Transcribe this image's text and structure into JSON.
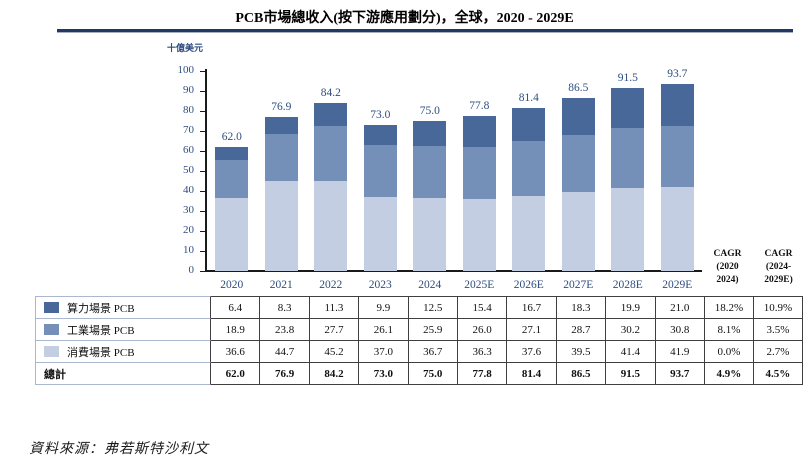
{
  "title": "PCB市場總收入(按下游應用劃分)，全球，2020 - 2029E",
  "unit_label": "十億美元",
  "source": "資料來源：弗若斯特沙利文",
  "colors": {
    "compute": "#49689a",
    "industrial": "#748fb8",
    "consumer": "#c3cee2",
    "axis_text": "#2e4d80",
    "title_rule": "#1f3864"
  },
  "chart_data": {
    "type": "bar",
    "stacked": true,
    "title": "PCB市場總收入(按下游應用劃分)，全球，2020 - 2029E",
    "ylabel": "十億美元",
    "ylim": [
      0,
      100
    ],
    "ytick_step": 10,
    "grid": false,
    "categories": [
      "2020",
      "2021",
      "2022",
      "2023",
      "2024",
      "2025E",
      "2026E",
      "2027E",
      "2028E",
      "2029E"
    ],
    "series": [
      {
        "name": "消費場景 PCB",
        "color": "#c3cee2",
        "values": [
          36.6,
          44.7,
          45.2,
          37.0,
          36.7,
          36.3,
          37.6,
          39.5,
          41.4,
          41.9
        ]
      },
      {
        "name": "工業場景 PCB",
        "color": "#748fb8",
        "values": [
          18.9,
          23.8,
          27.7,
          26.1,
          25.9,
          26.0,
          27.1,
          28.7,
          30.2,
          30.8
        ]
      },
      {
        "name": "算力場景 PCB",
        "color": "#49689a",
        "values": [
          6.4,
          8.3,
          11.3,
          9.9,
          12.5,
          15.4,
          16.7,
          18.3,
          19.9,
          21.0
        ]
      }
    ],
    "total_labels": [
      "62.0",
      "76.9",
      "84.2",
      "73.0",
      "75.0",
      "77.8",
      "81.4",
      "86.5",
      "91.5",
      "93.7"
    ]
  },
  "cagr_headers": [
    {
      "lines": [
        "CAGR",
        "(2020",
        "2024)"
      ]
    },
    {
      "lines": [
        "CAGR",
        "(2024-",
        "2029E)"
      ]
    }
  ],
  "table": {
    "rows": [
      {
        "label": "算力場景 PCB",
        "swatch": "#49689a",
        "bold": false,
        "values": [
          "6.4",
          "8.3",
          "11.3",
          "9.9",
          "12.5",
          "15.4",
          "16.7",
          "18.3",
          "19.9",
          "21.0",
          "18.2%",
          "10.9%"
        ]
      },
      {
        "label": "工業場景 PCB",
        "swatch": "#748fb8",
        "bold": false,
        "values": [
          "18.9",
          "23.8",
          "27.7",
          "26.1",
          "25.9",
          "26.0",
          "27.1",
          "28.7",
          "30.2",
          "30.8",
          "8.1%",
          "3.5%"
        ]
      },
      {
        "label": "消費場景 PCB",
        "swatch": "#c3cee2",
        "bold": false,
        "values": [
          "36.6",
          "44.7",
          "45.2",
          "37.0",
          "36.7",
          "36.3",
          "37.6",
          "39.5",
          "41.4",
          "41.9",
          "0.0%",
          "2.7%"
        ]
      },
      {
        "label": "總計",
        "swatch": null,
        "bold": true,
        "values": [
          "62.0",
          "76.9",
          "84.2",
          "73.0",
          "75.0",
          "77.8",
          "81.4",
          "86.5",
          "91.5",
          "93.7",
          "4.9%",
          "4.5%"
        ]
      }
    ]
  }
}
